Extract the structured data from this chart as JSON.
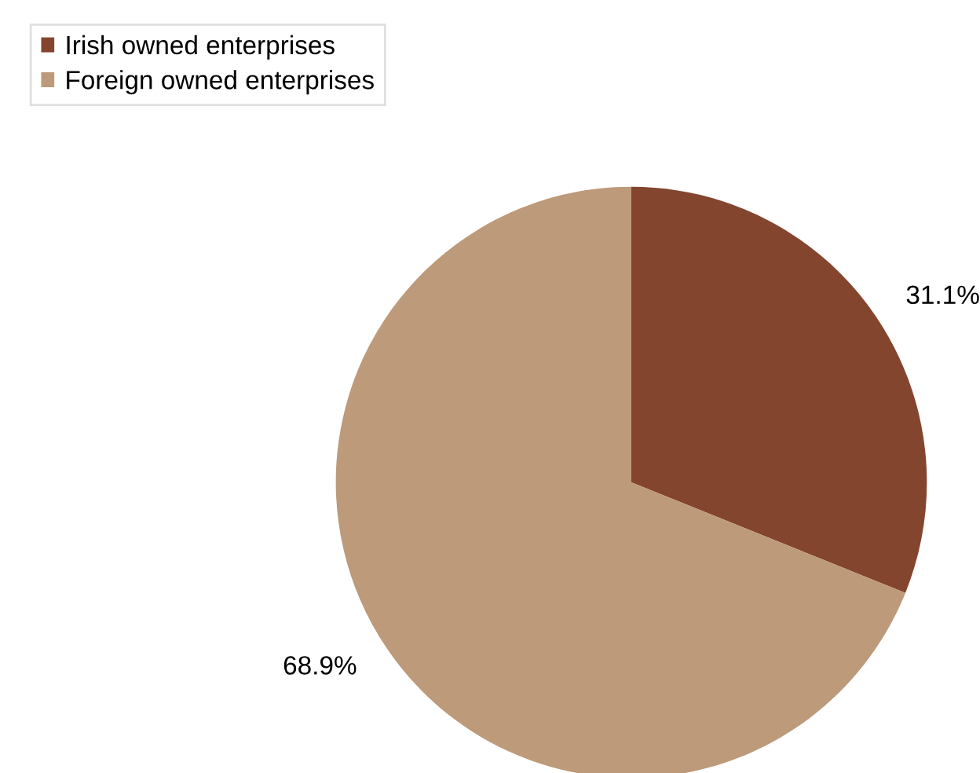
{
  "chart_data": {
    "type": "pie",
    "categories": [
      "Irish owned enterprises",
      "Foreign owned enterprises"
    ],
    "values": [
      31.1,
      68.9
    ],
    "colors": [
      "#84452f",
      "#bd9a7a"
    ],
    "value_labels": [
      "31.1%",
      "68.9%"
    ],
    "legend": "top left"
  }
}
